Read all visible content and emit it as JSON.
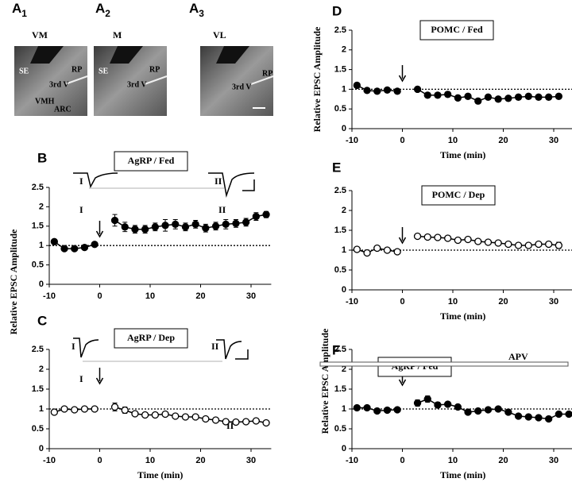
{
  "images": [
    {
      "letter": "A",
      "sub": "1",
      "region": "VM",
      "labels": [
        "SE",
        "RP",
        "3rd V",
        "VMH",
        "ARC"
      ]
    },
    {
      "letter": "A",
      "sub": "2",
      "region": "M",
      "labels": [
        "SE",
        "RP",
        "3rd V"
      ]
    },
    {
      "letter": "A",
      "sub": "3",
      "region": "VL",
      "labels": [
        "RP",
        "3rd V"
      ]
    }
  ],
  "chart_data": [
    {
      "type": "line",
      "panel": "B",
      "title": "AgRP / Fed",
      "trace_labels": [
        "I",
        "II"
      ],
      "annotations": [
        "I",
        "II"
      ],
      "xlim": [
        -10,
        34
      ],
      "xticks": [
        -10,
        0,
        10,
        20,
        30
      ],
      "ylim": [
        0,
        2.5
      ],
      "yticks": [
        0,
        0.5,
        1,
        1.5,
        2,
        2.5
      ],
      "reference_line": 1,
      "color": "#000000",
      "series": [
        {
          "marker": "filled",
          "x": [
            -9,
            -7,
            -5,
            -3,
            -1
          ],
          "values": [
            1.1,
            0.92,
            0.92,
            0.95,
            1.03
          ],
          "errors": [
            0.05,
            0.04,
            0.04,
            0.04,
            0.05
          ]
        },
        {
          "marker": "filled",
          "x": [
            3,
            5,
            7,
            9,
            11,
            13,
            15,
            17,
            19,
            21,
            23,
            25,
            27,
            29,
            31,
            33
          ],
          "values": [
            1.65,
            1.48,
            1.42,
            1.42,
            1.48,
            1.52,
            1.55,
            1.48,
            1.55,
            1.45,
            1.5,
            1.55,
            1.57,
            1.6,
            1.75,
            1.8
          ],
          "errors": [
            0.15,
            0.12,
            0.1,
            0.1,
            0.1,
            0.15,
            0.12,
            0.1,
            0.1,
            0.1,
            0.1,
            0.12,
            0.1,
            0.1,
            0.1,
            0.08
          ]
        }
      ]
    },
    {
      "type": "line",
      "panel": "C",
      "title": "AgRP / Dep",
      "trace_labels": [
        "I",
        "II"
      ],
      "annotations": [
        "I",
        "II"
      ],
      "xlabel": "Time (min)",
      "ylabel": "Relative EPSC Amplitude",
      "xlim": [
        -10,
        34
      ],
      "xticks": [
        -10,
        0,
        10,
        20,
        30
      ],
      "ylim": [
        0,
        2.5
      ],
      "yticks": [
        0,
        0.5,
        1,
        1.5,
        2,
        2.5
      ],
      "reference_line": 1,
      "color": "#000000",
      "series": [
        {
          "marker": "open",
          "x": [
            -9,
            -7,
            -5,
            -3,
            -1
          ],
          "values": [
            0.92,
            1.0,
            0.98,
            1.0,
            1.0
          ],
          "errors": [
            0.06,
            0.04,
            0.05,
            0.04,
            0.04
          ]
        },
        {
          "marker": "open",
          "x": [
            3,
            5,
            7,
            9,
            11,
            13,
            15,
            17,
            19,
            21,
            23,
            25,
            27,
            29,
            31,
            33
          ],
          "values": [
            1.05,
            0.97,
            0.88,
            0.85,
            0.85,
            0.87,
            0.82,
            0.8,
            0.8,
            0.75,
            0.72,
            0.68,
            0.67,
            0.68,
            0.7,
            0.65
          ],
          "errors": [
            0.1,
            0.08,
            0.06,
            0.06,
            0.06,
            0.06,
            0.05,
            0.05,
            0.05,
            0.05,
            0.05,
            0.05,
            0.05,
            0.05,
            0.06,
            0.06
          ]
        }
      ]
    },
    {
      "type": "line",
      "panel": "D",
      "title": "POMC / Fed",
      "xlabel": "Time (min)",
      "ylabel": "Relative EPSC Amplitude",
      "xlim": [
        -10,
        34
      ],
      "xticks": [
        -10,
        0,
        10,
        20,
        30
      ],
      "ylim": [
        0,
        2.5
      ],
      "yticks": [
        0,
        0.5,
        1,
        1.5,
        2,
        2.5
      ],
      "reference_line": 1,
      "color": "#000000",
      "series": [
        {
          "marker": "filled",
          "x": [
            -9,
            -7,
            -5,
            -3,
            -1
          ],
          "values": [
            1.1,
            0.97,
            0.95,
            0.98,
            0.95
          ],
          "errors": [
            0.06,
            0.04,
            0.04,
            0.04,
            0.04
          ]
        },
        {
          "marker": "filled",
          "x": [
            3,
            5,
            7,
            9,
            11,
            13,
            15,
            17,
            19,
            21,
            23,
            25,
            27,
            29,
            31
          ],
          "values": [
            1.0,
            0.85,
            0.85,
            0.87,
            0.78,
            0.82,
            0.7,
            0.8,
            0.75,
            0.77,
            0.8,
            0.82,
            0.8,
            0.8,
            0.82
          ],
          "errors": [
            0.05,
            0.05,
            0.05,
            0.06,
            0.06,
            0.06,
            0.06,
            0.05,
            0.05,
            0.05,
            0.06,
            0.06,
            0.06,
            0.05,
            0.05
          ]
        }
      ]
    },
    {
      "type": "line",
      "panel": "E",
      "title": "POMC / Dep",
      "xlabel": "Time (min)",
      "xlim": [
        -10,
        34
      ],
      "xticks": [
        -10,
        0,
        10,
        20,
        30
      ],
      "ylim": [
        0,
        2.5
      ],
      "yticks": [
        0,
        0.5,
        1,
        1.5,
        2,
        2.5
      ],
      "reference_line": 1,
      "color": "#000000",
      "series": [
        {
          "marker": "open",
          "x": [
            -9,
            -7,
            -5,
            -3,
            -1
          ],
          "values": [
            1.02,
            0.93,
            1.05,
            1.0,
            0.96
          ],
          "errors": [
            0.04,
            0.05,
            0.05,
            0.05,
            0.05
          ]
        },
        {
          "marker": "open",
          "x": [
            3,
            5,
            7,
            9,
            11,
            13,
            15,
            17,
            19,
            21,
            23,
            25,
            27,
            29,
            31
          ],
          "values": [
            1.35,
            1.33,
            1.32,
            1.3,
            1.25,
            1.27,
            1.22,
            1.2,
            1.18,
            1.15,
            1.12,
            1.12,
            1.15,
            1.15,
            1.12
          ],
          "errors": [
            0.04,
            0.05,
            0.05,
            0.05,
            0.05,
            0.05,
            0.05,
            0.04,
            0.04,
            0.04,
            0.04,
            0.04,
            0.04,
            0.05,
            0.08
          ]
        }
      ]
    },
    {
      "type": "line",
      "panel": "F",
      "title": "AgRP / Fed",
      "annotations": [
        "APV"
      ],
      "xlabel": "Time (min)",
      "ylabel": "Relative EPSC Amplitude",
      "xlim": [
        -10,
        34
      ],
      "xticks": [
        -10,
        0,
        10,
        20,
        30
      ],
      "ylim": [
        0,
        2.5
      ],
      "yticks": [
        0,
        0.5,
        1,
        1.5,
        2,
        2.5
      ],
      "reference_line": 1,
      "color": "#000000",
      "series": [
        {
          "marker": "filled",
          "x": [
            -9,
            -7,
            -5,
            -3,
            -1
          ],
          "values": [
            1.03,
            1.03,
            0.95,
            0.97,
            0.98
          ],
          "errors": [
            0.04,
            0.04,
            0.04,
            0.04,
            0.04
          ]
        },
        {
          "marker": "filled",
          "x": [
            3,
            5,
            7,
            9,
            11,
            13,
            15,
            17,
            19,
            21,
            23,
            25,
            27,
            29,
            31,
            33
          ],
          "values": [
            1.15,
            1.25,
            1.1,
            1.12,
            1.05,
            0.92,
            0.95,
            0.98,
            1.0,
            0.92,
            0.82,
            0.8,
            0.78,
            0.75,
            0.87,
            0.87
          ],
          "errors": [
            0.08,
            0.08,
            0.07,
            0.06,
            0.06,
            0.05,
            0.05,
            0.06,
            0.06,
            0.06,
            0.05,
            0.05,
            0.05,
            0.05,
            0.06,
            0.06
          ]
        }
      ]
    }
  ]
}
